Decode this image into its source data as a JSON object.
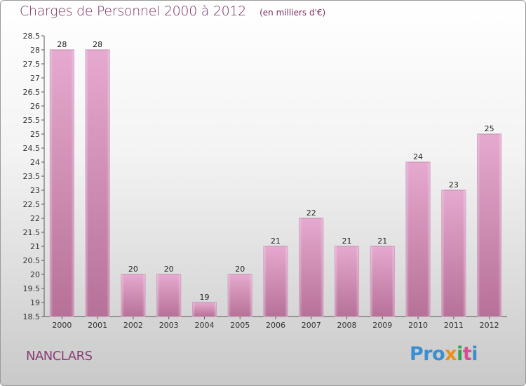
{
  "chart_data": {
    "type": "bar",
    "title": "Charges de Personnel 2000 à 2012",
    "subtitle": "(en milliers d'€)",
    "categories": [
      "2000",
      "2001",
      "2002",
      "2003",
      "2004",
      "2005",
      "2006",
      "2007",
      "2008",
      "2009",
      "2010",
      "2011",
      "2012"
    ],
    "values": [
      28,
      28,
      20,
      20,
      19,
      20,
      21,
      22,
      21,
      21,
      24,
      23,
      25
    ],
    "ylim": [
      18.5,
      28.5
    ],
    "yticks": [
      "18.5",
      "19",
      "19.5",
      "20",
      "20.5",
      "21",
      "21.5",
      "22",
      "22.5",
      "23",
      "23.5",
      "24",
      "24.5",
      "25",
      "25.5",
      "26",
      "26.5",
      "27",
      "27.5",
      "28",
      "28.5"
    ],
    "grid": false,
    "bar_color": "#d08ab6"
  },
  "commune": "NANCLARS",
  "logo": {
    "p1": "Pro",
    "p2": "x",
    "p3": "i",
    "p4": "t",
    "p5": "i"
  }
}
